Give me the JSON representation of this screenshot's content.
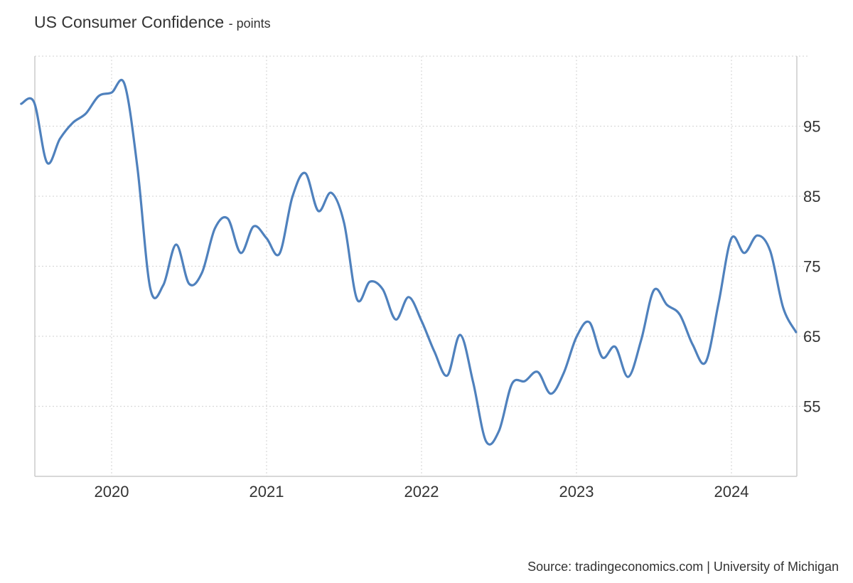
{
  "chart_data": {
    "type": "line",
    "title": "US Consumer Confidence",
    "unit": "points",
    "xlabel": "",
    "ylabel": "",
    "x_ticks": [
      "2020",
      "2021",
      "2022",
      "2023",
      "2024"
    ],
    "y_ticks": [
      55,
      65,
      75,
      85,
      95
    ],
    "ylim": [
      45,
      105
    ],
    "grid": true,
    "y_axis_side": "right",
    "color": "#4f81bd",
    "series": [
      {
        "name": "",
        "points": [
          [
            "2019-06",
            98.2
          ],
          [
            "2019-07",
            98.4
          ],
          [
            "2019-08",
            89.8
          ],
          [
            "2019-09",
            93.2
          ],
          [
            "2019-10",
            95.5
          ],
          [
            "2019-11",
            96.8
          ],
          [
            "2019-12",
            99.3
          ],
          [
            "2020-01",
            99.8
          ],
          [
            "2020-02",
            101.0
          ],
          [
            "2020-03",
            89.1
          ],
          [
            "2020-04",
            71.8
          ],
          [
            "2020-05",
            72.3
          ],
          [
            "2020-06",
            78.1
          ],
          [
            "2020-07",
            72.5
          ],
          [
            "2020-08",
            74.1
          ],
          [
            "2020-09",
            80.4
          ],
          [
            "2020-10",
            81.8
          ],
          [
            "2020-11",
            76.9
          ],
          [
            "2020-12",
            80.7
          ],
          [
            "2021-01",
            79.0
          ],
          [
            "2021-02",
            76.8
          ],
          [
            "2021-03",
            84.9
          ],
          [
            "2021-04",
            88.3
          ],
          [
            "2021-05",
            82.9
          ],
          [
            "2021-06",
            85.5
          ],
          [
            "2021-07",
            81.2
          ],
          [
            "2021-08",
            70.3
          ],
          [
            "2021-09",
            72.8
          ],
          [
            "2021-10",
            71.7
          ],
          [
            "2021-11",
            67.4
          ],
          [
            "2021-12",
            70.6
          ],
          [
            "2022-01",
            67.2
          ],
          [
            "2022-02",
            62.8
          ],
          [
            "2022-03",
            59.4
          ],
          [
            "2022-04",
            65.2
          ],
          [
            "2022-05",
            58.4
          ],
          [
            "2022-06",
            50.0
          ],
          [
            "2022-07",
            51.5
          ],
          [
            "2022-08",
            58.2
          ],
          [
            "2022-09",
            58.6
          ],
          [
            "2022-10",
            59.9
          ],
          [
            "2022-11",
            56.8
          ],
          [
            "2022-12",
            59.7
          ],
          [
            "2023-01",
            64.9
          ],
          [
            "2023-02",
            67.0
          ],
          [
            "2023-03",
            62.0
          ],
          [
            "2023-04",
            63.5
          ],
          [
            "2023-05",
            59.2
          ],
          [
            "2023-06",
            64.4
          ],
          [
            "2023-07",
            71.6
          ],
          [
            "2023-08",
            69.5
          ],
          [
            "2023-09",
            68.1
          ],
          [
            "2023-10",
            63.8
          ],
          [
            "2023-11",
            61.3
          ],
          [
            "2023-12",
            69.7
          ],
          [
            "2024-01",
            79.0
          ],
          [
            "2024-02",
            76.9
          ],
          [
            "2024-03",
            79.4
          ],
          [
            "2024-04",
            77.2
          ],
          [
            "2024-05",
            69.1
          ],
          [
            "2024-06",
            65.6
          ]
        ]
      }
    ]
  },
  "source_text": "Source: tradingeconomics.com | University of Michigan"
}
